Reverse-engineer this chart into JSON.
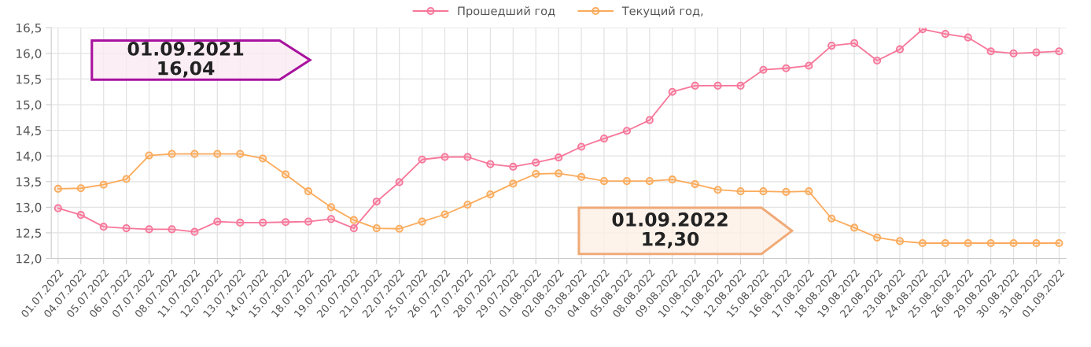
{
  "chart_data": {
    "type": "line",
    "categories": [
      "01.07.2022",
      "04.07.2022",
      "05.07.2022",
      "06.07.2022",
      "07.07.2022",
      "08.07.2022",
      "11.07.2022",
      "12.07.2022",
      "13.07.2022",
      "14.07.2022",
      "15.07.2022",
      "18.07.2022",
      "19.07.2022",
      "20.07.2022",
      "21.07.2022",
      "22.07.2022",
      "25.07.2022",
      "26.07.2022",
      "27.07.2022",
      "28.07.2022",
      "29.07.2022",
      "01.08.2022",
      "02.08.2022",
      "03.08.2022",
      "04.08.2022",
      "05.08.2022",
      "08.08.2022",
      "09.08.2022",
      "10.08.2022",
      "11.08.2022",
      "12.08.2022",
      "15.08.2022",
      "16.08.2022",
      "17.08.2022",
      "18.08.2022",
      "19.08.2022",
      "22.08.2022",
      "23.08.2022",
      "24.08.2022",
      "25.08.2022",
      "26.08.2022",
      "29.08.2022",
      "30.08.2022",
      "31.08.2022",
      "01.09.2022"
    ],
    "series": [
      {
        "name": "Прошедший год",
        "color": "#f7779a",
        "values": [
          12.98,
          12.85,
          12.62,
          12.59,
          12.57,
          12.57,
          12.52,
          12.72,
          12.7,
          12.7,
          12.71,
          12.72,
          12.77,
          12.59,
          13.11,
          13.49,
          13.93,
          13.98,
          13.98,
          13.84,
          13.79,
          13.87,
          13.97,
          14.18,
          14.34,
          14.49,
          14.7,
          15.25,
          15.37,
          15.37,
          15.37,
          15.68,
          15.71,
          15.76,
          16.15,
          16.2,
          15.86,
          16.08,
          16.47,
          16.38,
          16.31,
          16.04,
          16.0,
          16.02,
          16.04
        ]
      },
      {
        "name": "Текущий год,",
        "color": "#fbab5c",
        "values": [
          13.36,
          13.37,
          13.44,
          13.55,
          14.01,
          14.04,
          14.04,
          14.04,
          14.04,
          13.95,
          13.64,
          13.31,
          13.0,
          12.75,
          12.59,
          12.58,
          12.72,
          12.86,
          13.05,
          13.25,
          13.46,
          13.65,
          13.66,
          13.59,
          13.51,
          13.51,
          13.51,
          13.54,
          13.45,
          13.34,
          13.31,
          13.31,
          13.3,
          13.31,
          12.78,
          12.6,
          12.41,
          12.34,
          12.3,
          12.3,
          12.3,
          12.3,
          12.3,
          12.3,
          12.3
        ]
      }
    ],
    "ylim": [
      12.0,
      16.5
    ],
    "yticks": [
      {
        "value": 12.0,
        "label": "12,0"
      },
      {
        "value": 12.5,
        "label": "12,5"
      },
      {
        "value": 13.0,
        "label": "13,0"
      },
      {
        "value": 13.5,
        "label": "13,5"
      },
      {
        "value": 14.0,
        "label": "14,0"
      },
      {
        "value": 14.5,
        "label": "14,5"
      },
      {
        "value": 15.0,
        "label": "15,0"
      },
      {
        "value": 15.5,
        "label": "15,5"
      },
      {
        "value": 16.0,
        "label": "16,0"
      },
      {
        "value": 16.5,
        "label": "16,5"
      }
    ],
    "grid": true,
    "legend": "top",
    "marker": "circle",
    "line_style": "solid",
    "annotations": [
      "01.09.2021\n16,04",
      "01.09.2022\n12,30"
    ]
  }
}
